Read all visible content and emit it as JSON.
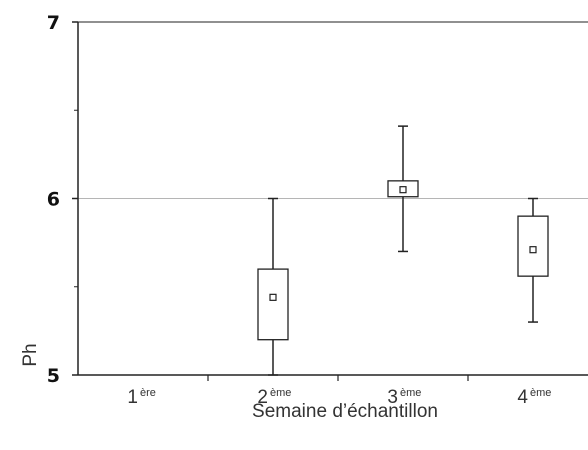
{
  "chart_data": {
    "type": "boxplot",
    "title": "",
    "xlabel": "Semaine d’échantillon",
    "ylabel": "Ph",
    "ylim": [
      5,
      7
    ],
    "yticks": [
      "5",
      "6",
      "7"
    ],
    "gridlines_y": [
      6
    ],
    "categories": [
      {
        "main": "1",
        "sup": "ère"
      },
      {
        "main": "2",
        "sup": "ème"
      },
      {
        "main": "3",
        "sup": "ème"
      },
      {
        "main": "4",
        "sup": "ème"
      }
    ],
    "boxes": [
      null,
      {
        "min": 5.0,
        "q1": 5.2,
        "median": 5.44,
        "q3": 5.6,
        "max": 6.0
      },
      {
        "min": 5.7,
        "q1": 6.01,
        "median": 6.05,
        "q3": 6.1,
        "max": 6.41
      },
      {
        "min": 5.3,
        "q1": 5.56,
        "median": 5.71,
        "q3": 5.9,
        "max": 6.0
      }
    ]
  }
}
